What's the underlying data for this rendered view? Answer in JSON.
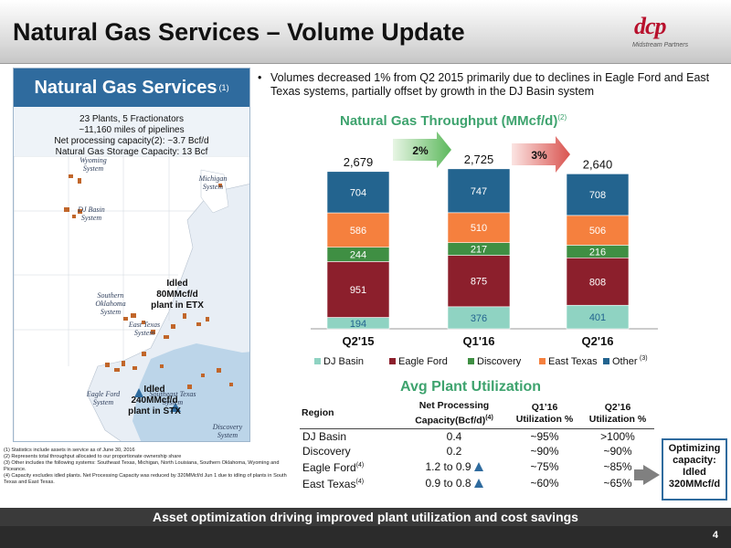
{
  "header": {
    "title": "Natural Gas Services – Volume Update"
  },
  "logo": {
    "text": "dcp",
    "sub": "Midstream Partners"
  },
  "left_panel": {
    "heading": "Natural Gas Services",
    "heading_sup": "(1)",
    "stats": [
      "23 Plants, 5 Fractionators",
      "~11,160 miles of pipelines",
      "Net processing capacity(2): ~3.7 Bcf/d",
      "Natural Gas Storage Capacity: 13 Bcf"
    ],
    "systems": {
      "wyoming": "Wyoming System",
      "michigan": "Michigan System",
      "dj_basin": "DJ Basin System",
      "southern_oklahoma": "Southern Oklahoma System",
      "east_texas": "East Texas System",
      "southeast_texas": "Southeast Texas System",
      "eagle_ford": "Eagle Ford System",
      "discovery": "Discovery System"
    },
    "idled_etx": [
      "Idled",
      "80MMcf/d",
      "plant in ETX"
    ],
    "idled_stx": [
      "Idled",
      "240MMcf/d",
      "plant in STX"
    ]
  },
  "bullet": "Volumes decreased 1% from Q2 2015 primarily due to declines in Eagle Ford and East Texas systems, partially offset by growth in the DJ Basin system",
  "chart_title": "Natural Gas Throughput (MMcf/d)",
  "chart_title_sup": "(2)",
  "chart_data": {
    "type": "bar",
    "stacked": true,
    "categories": [
      "Q2'15",
      "Q1'16",
      "Q2'16"
    ],
    "totals": [
      "2,679",
      "2,725",
      "2,640"
    ],
    "series": [
      {
        "name": "DJ Basin",
        "color": "#8fd3c2",
        "values": [
          194,
          376,
          401
        ]
      },
      {
        "name": "Eagle Ford",
        "color": "#8c1f2c",
        "values": [
          951,
          875,
          808
        ]
      },
      {
        "name": "Discovery",
        "color": "#3f8f43",
        "values": [
          244,
          217,
          216
        ]
      },
      {
        "name": "East Texas",
        "color": "#f5803e",
        "values": [
          586,
          510,
          506
        ]
      },
      {
        "name": "Other",
        "name_sup": "(3)",
        "color": "#23648f",
        "values": [
          704,
          747,
          708
        ]
      }
    ],
    "changes": [
      "2%",
      "3%"
    ],
    "ylim": [
      0,
      2800
    ],
    "legend_position": "bottom"
  },
  "avg_title": "Avg Plant Utilization",
  "table": {
    "headers": {
      "region": "Region",
      "capacity": "Net Processing Capacity(Bcf/d)",
      "capacity_sup": "(4)",
      "q1": "Q1’16 Utilization %",
      "q2": "Q2’16 Utilization %"
    },
    "rows": [
      {
        "region": "DJ Basin",
        "sup": "",
        "capacity": "0.4",
        "q1": "~95%",
        "q2": ">100%",
        "arrow": false
      },
      {
        "region": "Discovery",
        "sup": "",
        "capacity": "0.2",
        "q1": "~90%",
        "q2": "~90%",
        "arrow": false
      },
      {
        "region": "Eagle Ford",
        "sup": "(4)",
        "capacity": "1.2 to 0.9",
        "q1": "~75%",
        "q2": "~85%",
        "arrow": true
      },
      {
        "region": "East Texas",
        "sup": "(4)",
        "capacity": "0.9 to 0.8",
        "q1": "~60%",
        "q2": "~65%",
        "arrow": true
      }
    ]
  },
  "optimizing": [
    "Optimizing",
    "capacity:",
    "Idled",
    "320MMcf/d"
  ],
  "footnotes": [
    "(1) Statistics include assets in service as of June 30, 2016",
    "(2) Represents total throughput allocated to our proportionate ownership share",
    "(3) Other includes the following systems: Southeast Texas, Michigan, North Louisiana, Southern Oklahoma, Wyoming and Piceance.",
    "(4) Capacity excludes idled plants. Net Processing Capacity was reduced by 320MMcf/d Jun 1 due to idling of plants in South Texas and East Texas."
  ],
  "banner": "Asset optimization driving improved plant utilization and cost savings",
  "page_number": "4"
}
